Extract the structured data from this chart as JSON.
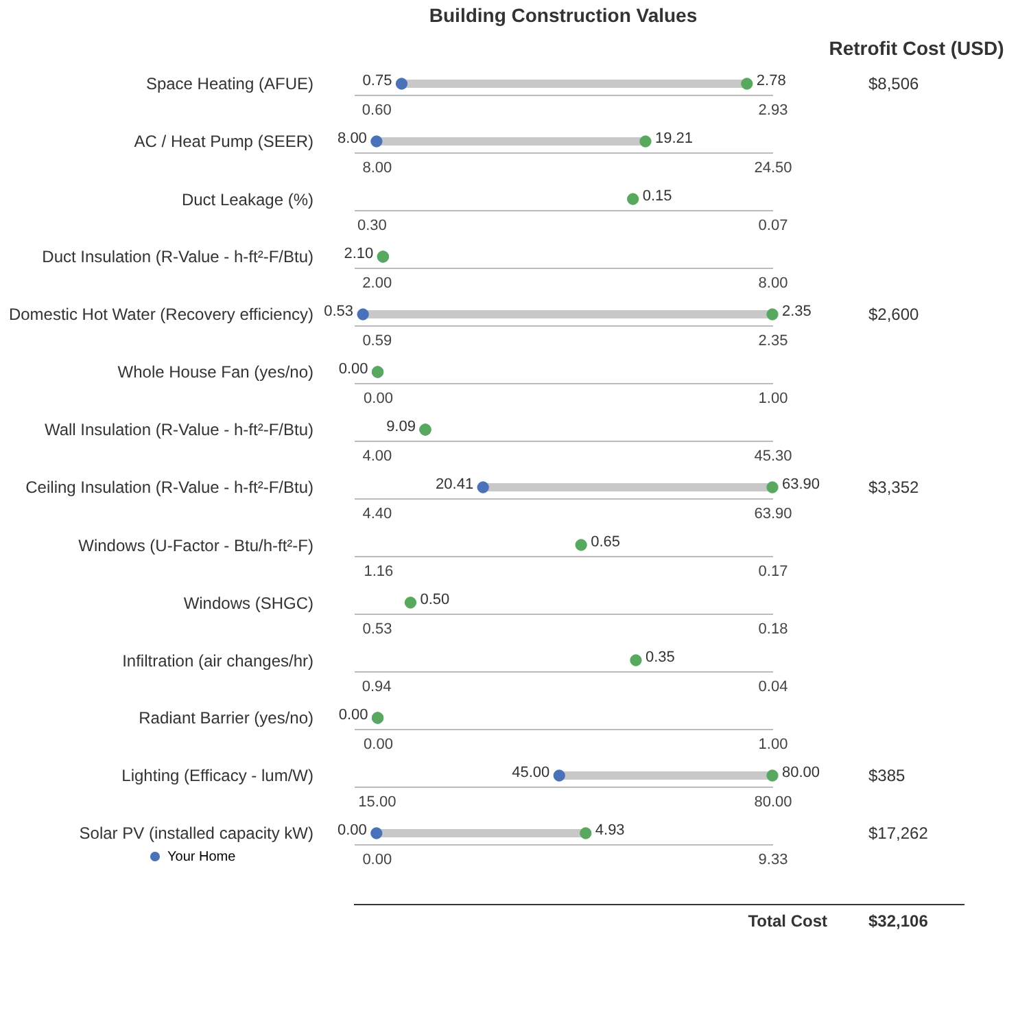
{
  "chart_data": [
    {
      "type": "scatter",
      "title": "Building Construction Values",
      "y2label": "Retrofit Cost (USD)",
      "orientation": "horizontal",
      "categories": [
        "Space Heating (AFUE)"
      ],
      "xlim": [
        0.47,
        2.93
      ],
      "xticks": [
        {
          "value": 0.6,
          "label": "0.60"
        },
        {
          "value": 2.93,
          "label": "2.93"
        }
      ],
      "annotations": [
        "$8,506"
      ],
      "series": [
        {
          "color": "#4a72b8",
          "values": [
            0.75
          ],
          "value_labels": [
            "0.75"
          ]
        },
        {
          "color": "#59a85f",
          "values": [
            2.78
          ],
          "value_labels": [
            "2.78"
          ]
        }
      ]
    },
    {
      "type": "scatter",
      "orientation": "horizontal",
      "categories": [
        "AC / Heat Pump (SEER)"
      ],
      "xlim": [
        7.06,
        24.5
      ],
      "xticks": [
        {
          "value": 8,
          "label": "8.00"
        },
        {
          "value": 24.5,
          "label": "24.50"
        }
      ],
      "series": [
        {
          "color": "#4a72b8",
          "values": [
            8.0
          ],
          "value_labels": [
            "8.00"
          ]
        },
        {
          "color": "#59a85f",
          "values": [
            19.21
          ],
          "value_labels": [
            "19.21"
          ]
        }
      ]
    },
    {
      "type": "scatter",
      "orientation": "horizontal",
      "categories": [
        "Duct Leakage (%)"
      ],
      "xlim": [
        0.31,
        0.07
      ],
      "xticks": [
        {
          "value": 0.3,
          "label": "0.30"
        },
        {
          "value": 0.07,
          "label": "0.07"
        }
      ],
      "series": [
        {
          "color": "#59a85f",
          "values": [
            0.15
          ],
          "value_labels": [
            "0.15"
          ]
        }
      ]
    },
    {
      "type": "scatter",
      "orientation": "horizontal",
      "categories": [
        "Duct Insulation (R-Value - h-ft²-F/Btu)"
      ],
      "xlim": [
        1.66,
        8.0
      ],
      "xticks": [
        {
          "value": 2,
          "label": "2.00"
        },
        {
          "value": 8,
          "label": "8.00"
        }
      ],
      "series": [
        {
          "color": "#4a72b8",
          "values": [
            2.1
          ],
          "value_labels": [
            "2.10"
          ]
        },
        {
          "color": "#59a85f",
          "values": [
            2.1
          ],
          "value_labels": [
            null
          ]
        }
      ]
    },
    {
      "type": "scatter",
      "orientation": "horizontal",
      "categories": [
        "Domestic Hot Water (Recovery efficiency)"
      ],
      "xlim": [
        0.49,
        2.35
      ],
      "xticks": [
        {
          "value": 0.59,
          "label": "0.59"
        },
        {
          "value": 2.35,
          "label": "2.35"
        }
      ],
      "annotations": [
        "$2,600"
      ],
      "series": [
        {
          "color": "#4a72b8",
          "values": [
            0.53
          ],
          "value_labels": [
            "0.53"
          ]
        },
        {
          "color": "#59a85f",
          "values": [
            2.35
          ],
          "value_labels": [
            "2.35"
          ]
        }
      ]
    },
    {
      "type": "scatter",
      "orientation": "horizontal",
      "categories": [
        "Whole House Fan (yes/no)"
      ],
      "xlim": [
        -0.06,
        1.0
      ],
      "xticks": [
        {
          "value": 0,
          "label": "0.00"
        },
        {
          "value": 1,
          "label": "1.00"
        }
      ],
      "series": [
        {
          "color": "#4a72b8",
          "values": [
            0.0
          ],
          "value_labels": [
            "0.00"
          ]
        },
        {
          "color": "#59a85f",
          "values": [
            0.0
          ],
          "value_labels": [
            null
          ]
        }
      ]
    },
    {
      "type": "scatter",
      "orientation": "horizontal",
      "categories": [
        "Wall Insulation (R-Value - h-ft²-F/Btu)"
      ],
      "xlim": [
        1.65,
        45.3
      ],
      "xticks": [
        {
          "value": 4,
          "label": "4.00"
        },
        {
          "value": 45.3,
          "label": "45.30"
        }
      ],
      "series": [
        {
          "color": "#4a72b8",
          "values": [
            9.09
          ],
          "value_labels": [
            "9.09"
          ]
        },
        {
          "color": "#59a85f",
          "values": [
            9.09
          ],
          "value_labels": [
            null
          ]
        }
      ]
    },
    {
      "type": "scatter",
      "orientation": "horizontal",
      "categories": [
        "Ceiling Insulation (R-Value - h-ft²-F/Btu)"
      ],
      "xlim": [
        1.01,
        63.9
      ],
      "xticks": [
        {
          "value": 4.4,
          "label": "4.40"
        },
        {
          "value": 63.9,
          "label": "63.90"
        }
      ],
      "annotations": [
        "$3,352"
      ],
      "series": [
        {
          "color": "#4a72b8",
          "values": [
            20.41
          ],
          "value_labels": [
            "20.41"
          ]
        },
        {
          "color": "#59a85f",
          "values": [
            63.9
          ],
          "value_labels": [
            "63.90"
          ]
        }
      ]
    },
    {
      "type": "scatter",
      "orientation": "horizontal",
      "categories": [
        "Windows (U-Factor - Btu/h-ft²-F)"
      ],
      "xlim": [
        1.22,
        0.17
      ],
      "xticks": [
        {
          "value": 1.16,
          "label": "1.16"
        },
        {
          "value": 0.17,
          "label": "0.17"
        }
      ],
      "series": [
        {
          "color": "#59a85f",
          "values": [
            0.65
          ],
          "value_labels": [
            "0.65"
          ]
        }
      ]
    },
    {
      "type": "scatter",
      "orientation": "horizontal",
      "categories": [
        "Windows (SHGC)"
      ],
      "xlim": [
        0.55,
        0.18
      ],
      "xticks": [
        {
          "value": 0.53,
          "label": "0.53"
        },
        {
          "value": 0.18,
          "label": "0.18"
        }
      ],
      "series": [
        {
          "color": "#59a85f",
          "values": [
            0.5
          ],
          "value_labels": [
            "0.50"
          ]
        }
      ]
    },
    {
      "type": "scatter",
      "orientation": "horizontal",
      "categories": [
        "Infiltration (air changes/hr)"
      ],
      "xlim": [
        0.99,
        0.04
      ],
      "xticks": [
        {
          "value": 0.94,
          "label": "0.94"
        },
        {
          "value": 0.04,
          "label": "0.04"
        }
      ],
      "series": [
        {
          "color": "#59a85f",
          "values": [
            0.35
          ],
          "value_labels": [
            "0.35"
          ]
        }
      ]
    },
    {
      "type": "scatter",
      "orientation": "horizontal",
      "categories": [
        "Radiant Barrier (yes/no)"
      ],
      "xlim": [
        -0.06,
        1.0
      ],
      "xticks": [
        {
          "value": 0,
          "label": "0.00"
        },
        {
          "value": 1,
          "label": "1.00"
        }
      ],
      "series": [
        {
          "color": "#4a72b8",
          "values": [
            0.0
          ],
          "value_labels": [
            "0.00"
          ]
        },
        {
          "color": "#59a85f",
          "values": [
            0.0
          ],
          "value_labels": [
            null
          ]
        }
      ]
    },
    {
      "type": "scatter",
      "orientation": "horizontal",
      "categories": [
        "Lighting (Efficacy - lum/W)"
      ],
      "xlim": [
        11.3,
        80.0
      ],
      "xticks": [
        {
          "value": 15,
          "label": "15.00"
        },
        {
          "value": 80,
          "label": "80.00"
        }
      ],
      "annotations": [
        "$385"
      ],
      "series": [
        {
          "color": "#4a72b8",
          "values": [
            45.0
          ],
          "value_labels": [
            "45.00"
          ]
        },
        {
          "color": "#59a85f",
          "values": [
            80.0
          ],
          "value_labels": [
            "80.00"
          ]
        }
      ]
    },
    {
      "type": "scatter",
      "orientation": "horizontal",
      "legend": "bottom left",
      "categories": [
        "Solar PV (installed capacity kW)"
      ],
      "xlim": [
        -0.53,
        9.33
      ],
      "xticks": [
        {
          "value": 0,
          "label": "0.00"
        },
        {
          "value": 9.33,
          "label": "9.33"
        }
      ],
      "annotations": [
        "$17,262",
        "Total Cost",
        "$32,106"
      ],
      "series": [
        {
          "name": "Your Home",
          "color": "#4a72b8",
          "values": [
            0.0
          ],
          "value_labels": [
            "0.00"
          ]
        },
        {
          "color": "#59a85f",
          "values": [
            4.93
          ],
          "value_labels": [
            "4.93"
          ]
        }
      ]
    }
  ]
}
